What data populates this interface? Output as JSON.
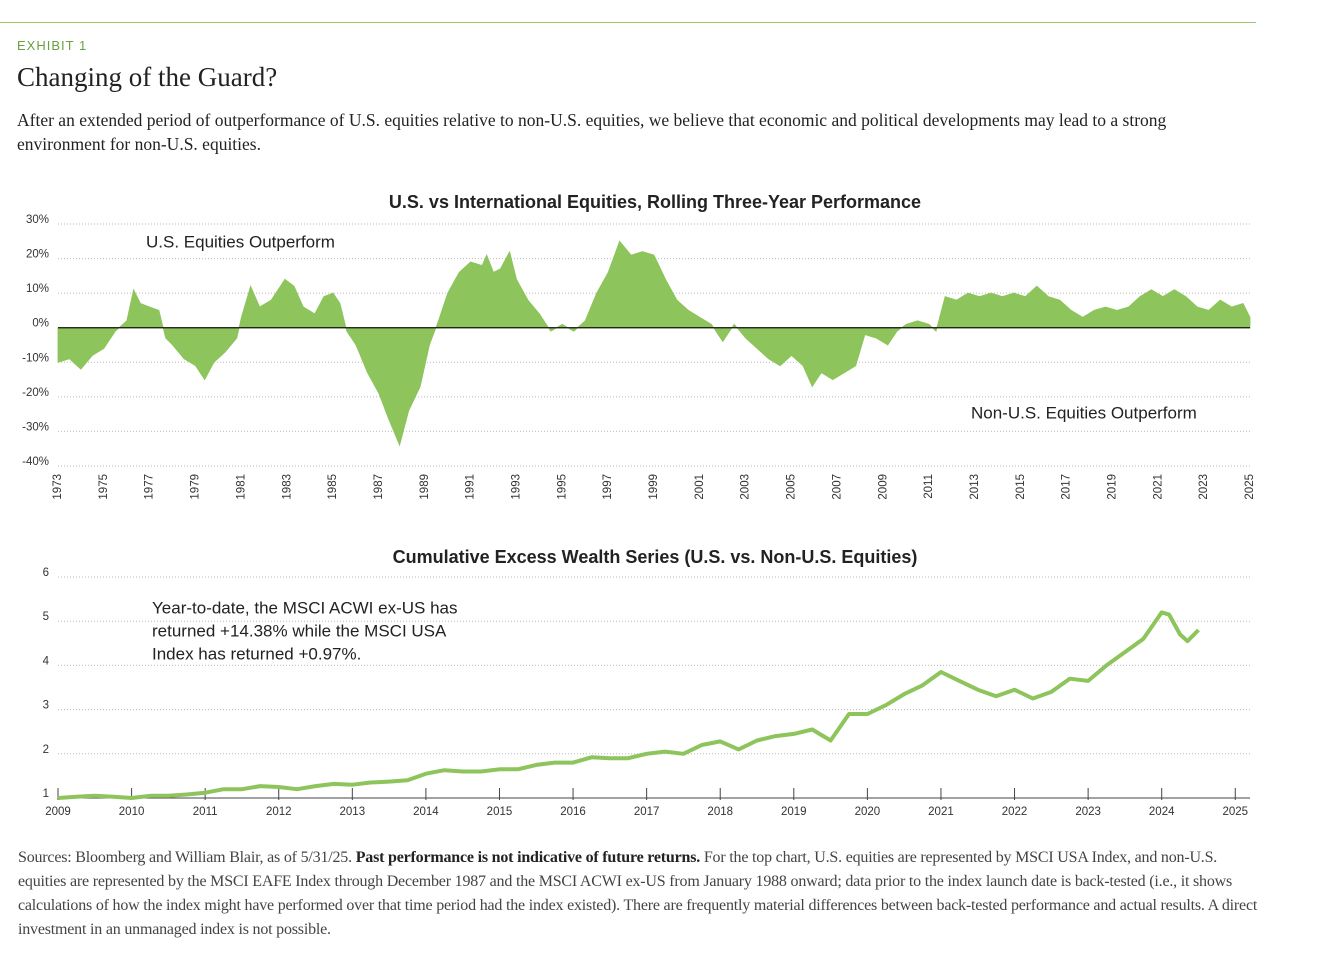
{
  "exhibit": "EXHIBIT 1",
  "title": "Changing of the Guard?",
  "subtitle": "After an extended period of outperformance of U.S. equities relative to non-U.S. equities, we believe that economic and political developments may lead to a strong environment for non-U.S. equities.",
  "chart_data": [
    {
      "type": "area",
      "title": "U.S. vs International Equities, Rolling Three-Year Performance",
      "annotations": [
        "U.S. Equities Outperform",
        "Non-U.S. Equities Outperform"
      ],
      "color": "#8dc45b",
      "x": [
        1973.0,
        1973.5,
        1974.0,
        1974.5,
        1975.0,
        1975.5,
        1976.0,
        1976.3,
        1976.6,
        1977.0,
        1977.4,
        1977.7,
        1978.0,
        1978.5,
        1979.0,
        1979.4,
        1979.8,
        1980.3,
        1980.8,
        1981.0,
        1981.4,
        1981.8,
        1982.3,
        1982.6,
        1982.9,
        1983.3,
        1983.7,
        1984.2,
        1984.6,
        1985.0,
        1985.3,
        1985.6,
        1986.0,
        1986.5,
        1987.0,
        1987.4,
        1987.9,
        1988.3,
        1988.8,
        1989.2,
        1989.6,
        1990.0,
        1990.5,
        1991.0,
        1991.5,
        1991.7,
        1992.0,
        1992.3,
        1992.7,
        1993.0,
        1993.5,
        1994.0,
        1994.5,
        1995.0,
        1995.5,
        1996.0,
        1996.5,
        1997.0,
        1997.5,
        1998.0,
        1998.5,
        1999.0,
        1999.5,
        2000.0,
        2000.5,
        2001.0,
        2001.5,
        2002.0,
        2002.5,
        2003.0,
        2003.5,
        2004.0,
        2004.5,
        2005.0,
        2005.5,
        2005.9,
        2006.3,
        2006.8,
        2007.3,
        2007.8,
        2008.2,
        2008.7,
        2009.2,
        2009.6,
        2010.0,
        2010.5,
        2011.0,
        2011.3,
        2011.7,
        2012.2,
        2012.7,
        2013.2,
        2013.7,
        2014.2,
        2014.7,
        2015.2,
        2015.7,
        2016.2,
        2016.7,
        2017.2,
        2017.7,
        2018.2,
        2018.7,
        2019.2,
        2019.7,
        2020.2,
        2020.7,
        2021.2,
        2021.7,
        2022.2,
        2022.7,
        2023.2,
        2023.7,
        2024.2,
        2024.7,
        2025.0
      ],
      "values": [
        -10,
        -9,
        -12,
        -8,
        -6,
        -1,
        2,
        11,
        7,
        6,
        5,
        -3,
        -5,
        -9,
        -11,
        -15,
        -10,
        -7,
        -3,
        3,
        12,
        6,
        8,
        11,
        14,
        12,
        6,
        4,
        9,
        10,
        7,
        -1,
        -5,
        -13,
        -19,
        -26,
        -34,
        -24,
        -17,
        -5,
        2,
        10,
        16,
        19,
        18,
        21,
        16,
        17,
        22,
        14,
        8,
        4,
        -1,
        1,
        -1,
        2,
        10,
        16,
        25,
        21,
        22,
        21,
        14,
        8,
        5,
        3,
        1,
        -4,
        1,
        -3,
        -6,
        -9,
        -11,
        -8,
        -11,
        -17,
        -13,
        -15,
        -13,
        -11,
        -2,
        -3,
        -5,
        -1,
        1,
        2,
        1,
        -1,
        9,
        8,
        10,
        9,
        10,
        9,
        10,
        9,
        12,
        9,
        8,
        5,
        3,
        5,
        6,
        5,
        6,
        9,
        11,
        9,
        11,
        9,
        6,
        5,
        8,
        6,
        7,
        3
      ],
      "xlim": [
        1973,
        2025
      ],
      "xticks": [
        1973,
        1975,
        1977,
        1979,
        1981,
        1983,
        1985,
        1987,
        1989,
        1991,
        1993,
        1995,
        1997,
        1999,
        2001,
        2003,
        2005,
        2007,
        2009,
        2011,
        2013,
        2015,
        2017,
        2019,
        2021,
        2023,
        2025
      ],
      "ylim": [
        -40,
        30
      ],
      "yticks": [
        {
          "value": 30,
          "label": "30%"
        },
        {
          "value": 20,
          "label": "20%"
        },
        {
          "value": 10,
          "label": "10%"
        },
        {
          "value": 0,
          "label": "0%"
        },
        {
          "value": -10,
          "label": "-10%"
        },
        {
          "value": -20,
          "label": "-20%"
        },
        {
          "value": -30,
          "label": "-30%"
        },
        {
          "value": -40,
          "label": "-40%"
        }
      ],
      "grid": true
    },
    {
      "type": "line",
      "title": "Cumulative Excess Wealth Series (U.S. vs. Non-U.S. Equities)",
      "annotation": [
        "Year-to-date, the MSCI ACWI ex-US has",
        "returned +14.38% while the MSCI USA",
        "Index has returned +0.97%."
      ],
      "color": "#8dc45b",
      "x": [
        2009.0,
        2009.25,
        2009.5,
        2009.75,
        2010.0,
        2010.25,
        2010.5,
        2010.75,
        2011.0,
        2011.25,
        2011.5,
        2011.75,
        2012.0,
        2012.25,
        2012.5,
        2012.75,
        2013.0,
        2013.25,
        2013.5,
        2013.75,
        2014.0,
        2014.25,
        2014.5,
        2014.75,
        2015.0,
        2015.25,
        2015.5,
        2015.75,
        2016.0,
        2016.25,
        2016.5,
        2016.75,
        2017.0,
        2017.25,
        2017.5,
        2017.75,
        2018.0,
        2018.25,
        2018.5,
        2018.75,
        2019.0,
        2019.25,
        2019.5,
        2019.75,
        2020.0,
        2020.25,
        2020.5,
        2020.75,
        2021.0,
        2021.25,
        2021.5,
        2021.75,
        2022.0,
        2022.25,
        2022.5,
        2022.75,
        2023.0,
        2023.25,
        2023.5,
        2023.75,
        2024.0,
        2024.1,
        2024.25,
        2024.35,
        2024.5
      ],
      "values": [
        1.0,
        1.03,
        1.05,
        1.03,
        1.0,
        1.05,
        1.05,
        1.08,
        1.12,
        1.2,
        1.2,
        1.27,
        1.25,
        1.2,
        1.27,
        1.32,
        1.3,
        1.35,
        1.37,
        1.4,
        1.55,
        1.63,
        1.6,
        1.6,
        1.65,
        1.65,
        1.75,
        1.8,
        1.8,
        1.92,
        1.9,
        1.9,
        2.0,
        2.05,
        2.0,
        2.2,
        2.28,
        2.1,
        2.3,
        2.4,
        2.45,
        2.55,
        2.3,
        2.9,
        2.9,
        3.1,
        3.35,
        3.55,
        3.85,
        3.65,
        3.45,
        3.3,
        3.45,
        3.25,
        3.4,
        3.7,
        3.65,
        4.0,
        4.3,
        4.6,
        5.2,
        5.15,
        4.7,
        4.55,
        4.8
      ],
      "xlim": [
        2009,
        2025.2
      ],
      "xticks": [
        2009,
        2010,
        2011,
        2012,
        2013,
        2014,
        2015,
        2016,
        2017,
        2018,
        2019,
        2020,
        2021,
        2022,
        2023,
        2024,
        2025
      ],
      "ylim": [
        1,
        6
      ],
      "yticks": [
        1,
        2,
        3,
        4,
        5,
        6
      ],
      "grid": true
    }
  ],
  "sources": {
    "lead": "Sources: Bloomberg and William Blair, as of 5/31/25.",
    "bold": "Past performance is not indicative of future returns.",
    "rest": "For the top chart, U.S. equities are represented by MSCI USA Index, and non-U.S. equities are represented by the MSCI EAFE Index through December 1987 and the MSCI ACWI ex-US from January 1988 onward; data prior to the index launch date is back-tested (i.e., it shows calculations of how the index might have performed over that time period had the index existed). There are frequently material differences between back-tested performance and actual results. A direct investment in an unmanaged index is not possible."
  }
}
